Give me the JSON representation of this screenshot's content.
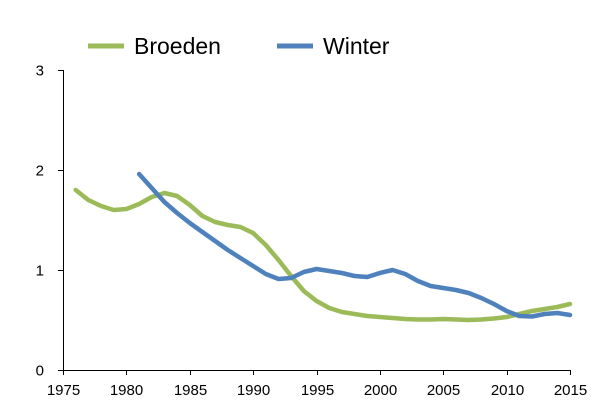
{
  "chart_data": {
    "type": "line",
    "title": "",
    "xlabel": "",
    "ylabel": "",
    "xlim": [
      1975,
      2015
    ],
    "ylim": [
      0,
      3
    ],
    "x_ticks": [
      1975,
      1980,
      1985,
      1990,
      1995,
      2000,
      2005,
      2010,
      2015
    ],
    "y_ticks": [
      0,
      1,
      2,
      3
    ],
    "grid": false,
    "legend_position": "top",
    "series": [
      {
        "name": "Broeden",
        "color": "#9bbb59",
        "x": [
          1976,
          1977,
          1978,
          1979,
          1980,
          1981,
          1982,
          1983,
          1984,
          1985,
          1986,
          1987,
          1988,
          1989,
          1990,
          1991,
          1992,
          1993,
          1994,
          1995,
          1996,
          1997,
          1998,
          1999,
          2000,
          2001,
          2002,
          2003,
          2004,
          2005,
          2006,
          2007,
          2008,
          2009,
          2010,
          2011,
          2012,
          2013,
          2014,
          2015
        ],
        "values": [
          1.8,
          1.7,
          1.64,
          1.6,
          1.61,
          1.66,
          1.73,
          1.77,
          1.74,
          1.65,
          1.54,
          1.48,
          1.45,
          1.43,
          1.37,
          1.25,
          1.1,
          0.94,
          0.79,
          0.69,
          0.62,
          0.58,
          0.56,
          0.54,
          0.53,
          0.52,
          0.51,
          0.505,
          0.505,
          0.51,
          0.505,
          0.5,
          0.505,
          0.515,
          0.53,
          0.56,
          0.59,
          0.61,
          0.63,
          0.66
        ]
      },
      {
        "name": "Winter",
        "color": "#4f81bd",
        "x": [
          1981,
          1982,
          1983,
          1984,
          1985,
          1986,
          1987,
          1988,
          1989,
          1990,
          1991,
          1992,
          1993,
          1994,
          1995,
          1996,
          1997,
          1998,
          1999,
          2000,
          2001,
          2002,
          2003,
          2004,
          2005,
          2006,
          2007,
          2008,
          2009,
          2010,
          2011,
          2012,
          2013,
          2014,
          2015
        ],
        "values": [
          1.96,
          1.82,
          1.68,
          1.57,
          1.47,
          1.38,
          1.29,
          1.2,
          1.12,
          1.04,
          0.96,
          0.91,
          0.92,
          0.98,
          1.01,
          0.99,
          0.97,
          0.94,
          0.93,
          0.97,
          1.0,
          0.96,
          0.89,
          0.84,
          0.82,
          0.8,
          0.77,
          0.72,
          0.66,
          0.59,
          0.54,
          0.535,
          0.56,
          0.57,
          0.55
        ]
      }
    ]
  }
}
